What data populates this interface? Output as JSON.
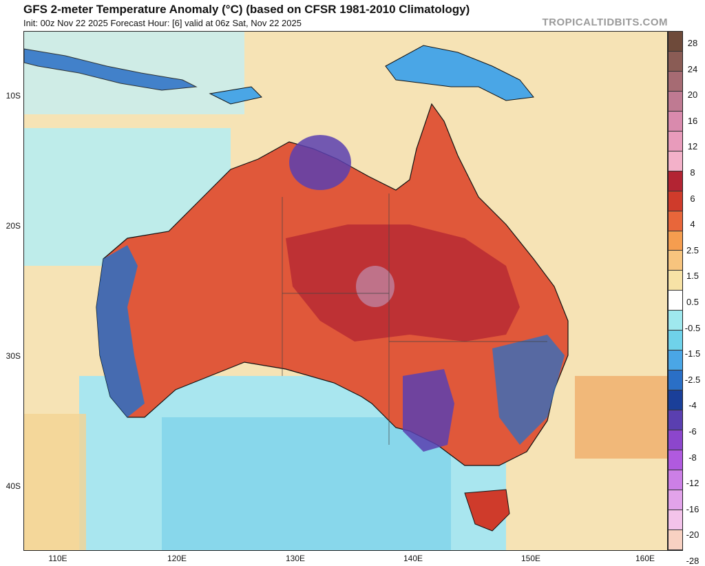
{
  "header": {
    "title": "GFS 2-meter Temperature Anomaly (°C) (based on CFSR 1981-2010 Climatology)",
    "subtitle": "Init: 00z Nov 22 2025   Forecast Hour: [6]   valid at 06z Sat, Nov 22 2025",
    "credit": "TROPICALTIDBITS.COM"
  },
  "axes": {
    "lat_labels": [
      "10S",
      "20S",
      "30S",
      "40S"
    ],
    "lon_labels": [
      "110E",
      "120E",
      "130E",
      "140E",
      "150E",
      "160E"
    ]
  },
  "colorbar": {
    "labels": [
      "28",
      "24",
      "20",
      "16",
      "12",
      "8",
      "6",
      "4",
      "2.5",
      "1.5",
      "0.5",
      "-0.5",
      "-1.5",
      "-2.5",
      "-4",
      "-6",
      "-8",
      "-12",
      "-16",
      "-20",
      "-28"
    ],
    "colors": [
      "#6e4a3a",
      "#8a5c55",
      "#a66b73",
      "#bf7a92",
      "#d98aad",
      "#e89bbb",
      "#f3b1c9",
      "#b32433",
      "#cf3b2b",
      "#e8663a",
      "#f59d4f",
      "#f7c47e",
      "#f7e2a6",
      "#ffffff",
      "#9fe8ee",
      "#6fd2ea",
      "#4aa6e6",
      "#2a6fc6",
      "#1a3f99",
      "#5a3fb0",
      "#8c46cc",
      "#b05adf",
      "#cc7fe6",
      "#e2a3ea",
      "#f3c3ea",
      "#f8d1c2"
    ]
  }
}
